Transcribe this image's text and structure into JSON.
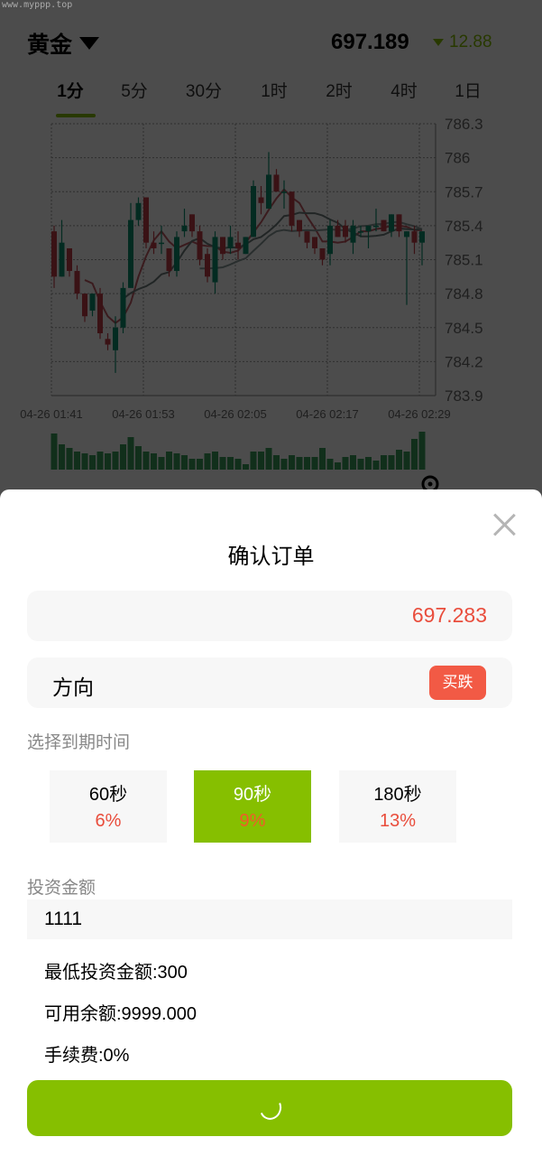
{
  "watermark": "www.myppp.top",
  "header": {
    "asset": "黄金",
    "price": "697.189",
    "change": "12.88",
    "change_direction": "down",
    "registered_icon": "registered-icon"
  },
  "tabs": [
    {
      "label": "1分",
      "active": true
    },
    {
      "label": "5分"
    },
    {
      "label": "30分"
    },
    {
      "label": "1时"
    },
    {
      "label": "2时"
    },
    {
      "label": "4时"
    },
    {
      "label": "1日"
    }
  ],
  "colors": {
    "accent": "#86bf00",
    "down": "#e94d3c",
    "candle_up": "#0b8f6e",
    "candle_down": "#c23b47"
  },
  "chart_data": {
    "type": "candlestick",
    "y_ticks": [
      "786.3",
      "786",
      "785.7",
      "785.4",
      "785.1",
      "784.8",
      "784.5",
      "784.2",
      "783.9"
    ],
    "ylim": [
      783.9,
      786.3
    ],
    "x_ticks": [
      "04-26 01:41",
      "04-26 01:53",
      "04-26 02:05",
      "04-26 02:17",
      "04-26 02:29"
    ],
    "grid": true,
    "candles": [
      [
        785.35,
        785.4,
        784.85,
        784.95
      ],
      [
        784.95,
        785.45,
        784.95,
        785.25
      ],
      [
        785.2,
        785.2,
        784.95,
        785.0
      ],
      [
        785.0,
        785.05,
        784.75,
        784.8
      ],
      [
        784.8,
        784.8,
        784.55,
        784.6
      ],
      [
        784.65,
        784.8,
        784.6,
        784.8
      ],
      [
        784.8,
        784.85,
        784.4,
        784.45
      ],
      [
        784.4,
        784.45,
        784.3,
        784.35
      ],
      [
        784.3,
        784.6,
        784.1,
        784.5
      ],
      [
        784.5,
        784.9,
        784.45,
        784.85
      ],
      [
        784.85,
        785.6,
        784.85,
        785.45
      ],
      [
        785.45,
        785.65,
        785.4,
        785.6
      ],
      [
        785.65,
        785.65,
        785.2,
        785.25
      ],
      [
        785.25,
        785.35,
        785.15,
        785.2
      ],
      [
        785.25,
        785.4,
        785.15,
        785.25
      ],
      [
        785.2,
        785.2,
        784.95,
        785.0
      ],
      [
        785.0,
        785.35,
        784.95,
        785.3
      ],
      [
        785.35,
        785.55,
        785.3,
        785.4
      ],
      [
        785.5,
        785.5,
        785.3,
        785.35
      ],
      [
        785.35,
        785.4,
        785.05,
        785.1
      ],
      [
        785.15,
        785.2,
        784.9,
        784.95
      ],
      [
        784.9,
        785.35,
        784.8,
        785.3
      ],
      [
        785.3,
        785.3,
        785.1,
        785.15
      ],
      [
        785.2,
        785.4,
        785.15,
        785.3
      ],
      [
        785.25,
        785.35,
        785.1,
        785.2
      ],
      [
        785.15,
        785.3,
        785.15,
        785.3
      ],
      [
        785.3,
        785.8,
        785.3,
        785.75
      ],
      [
        785.65,
        785.75,
        785.5,
        785.6
      ],
      [
        785.55,
        786.05,
        785.55,
        785.85
      ],
      [
        785.85,
        785.9,
        785.7,
        785.7
      ],
      [
        785.7,
        785.8,
        785.55,
        785.7
      ],
      [
        785.7,
        785.7,
        785.35,
        785.4
      ],
      [
        785.45,
        785.45,
        785.3,
        785.35
      ],
      [
        785.35,
        785.35,
        785.2,
        785.25
      ],
      [
        785.3,
        785.3,
        785.15,
        785.2
      ],
      [
        785.2,
        785.2,
        785.05,
        785.1
      ],
      [
        785.15,
        785.45,
        785.05,
        785.4
      ],
      [
        785.4,
        785.45,
        785.3,
        785.3
      ],
      [
        785.4,
        785.45,
        785.25,
        785.3
      ],
      [
        785.25,
        785.45,
        785.15,
        785.4
      ],
      [
        785.35,
        785.4,
        785.3,
        785.35
      ],
      [
        785.35,
        785.4,
        785.2,
        785.4
      ],
      [
        785.4,
        785.55,
        785.35,
        785.4
      ],
      [
        785.45,
        785.45,
        785.35,
        785.35
      ],
      [
        785.35,
        785.5,
        785.3,
        785.5
      ],
      [
        785.5,
        785.5,
        785.3,
        785.35
      ],
      [
        785.3,
        785.35,
        784.7,
        785.35
      ],
      [
        785.35,
        785.4,
        785.15,
        785.25
      ],
      [
        785.25,
        785.35,
        785.05,
        785.35
      ]
    ],
    "volume": [
      10,
      7,
      6,
      5,
      4.5,
      4,
      5,
      4.5,
      5,
      7,
      9,
      6.5,
      5,
      4.5,
      3.5,
      5,
      4.5,
      4,
      3,
      3,
      4.5,
      5,
      3.5,
      3.5,
      3,
      1.5,
      5,
      5,
      6,
      4,
      3,
      4,
      3.5,
      3.5,
      3.5,
      6,
      3,
      2,
      3.5,
      4,
      3,
      3.5,
      2.5,
      4,
      4,
      5.5,
      5,
      8.5,
      10.5
    ]
  },
  "modal": {
    "title": "确认订单",
    "order_price": "697.283",
    "direction_label": "方向",
    "direction_value": "买跌",
    "expiry_label": "选择到期时间",
    "options": [
      {
        "time": "60秒",
        "rate": "6%"
      },
      {
        "time": "90秒",
        "rate": "9%",
        "selected": true
      },
      {
        "time": "180秒",
        "rate": "13%"
      }
    ],
    "amount_label": "投资金额",
    "amount_value": "1111",
    "min_amount": "最低投资金额:300",
    "balance": "可用余额:9999.000",
    "fee": "手续费:0%",
    "submit_state": "loading"
  }
}
